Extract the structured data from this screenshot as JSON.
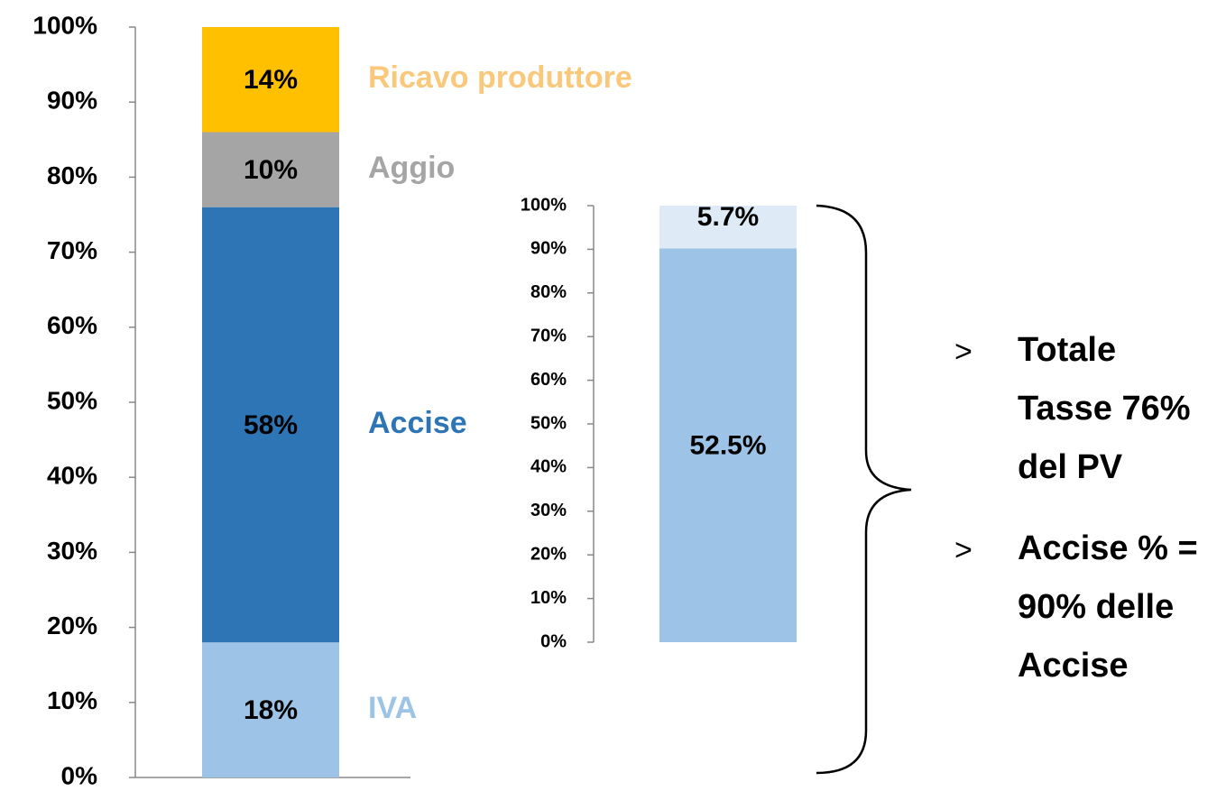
{
  "chart_data": [
    {
      "type": "stacked_bar",
      "stacking": "normal",
      "ylim": [
        0,
        100
      ],
      "yticks": [
        {
          "value": 0,
          "label": "0%"
        },
        {
          "value": 10,
          "label": "10%"
        },
        {
          "value": 20,
          "label": "20%"
        },
        {
          "value": 30,
          "label": "30%"
        },
        {
          "value": 40,
          "label": "40%"
        },
        {
          "value": 50,
          "label": "50%"
        },
        {
          "value": 60,
          "label": "60%"
        },
        {
          "value": 70,
          "label": "70%"
        },
        {
          "value": 80,
          "label": "80%"
        },
        {
          "value": 90,
          "label": "90%"
        },
        {
          "value": 100,
          "label": "100%"
        }
      ],
      "series": [
        {
          "name": "IVA",
          "color": "#9dc3e6",
          "values": [
            18
          ],
          "value_labels": [
            "18%"
          ]
        },
        {
          "name": "Accise",
          "color": "#2e75b6",
          "values": [
            58
          ],
          "value_labels": [
            "58%"
          ]
        },
        {
          "name": "Aggio",
          "color": "#a5a5a5",
          "values": [
            10
          ],
          "value_labels": [
            "10%"
          ]
        },
        {
          "name": "Ricavo produttore",
          "color": "#ffc000",
          "values": [
            14
          ],
          "value_labels": [
            "14%"
          ]
        }
      ]
    },
    {
      "type": "stacked_bar",
      "stacking": "percent",
      "ylim": [
        0,
        100
      ],
      "yticks": [
        {
          "value": 0,
          "label": "0%"
        },
        {
          "value": 10,
          "label": "10%"
        },
        {
          "value": 20,
          "label": "20%"
        },
        {
          "value": 30,
          "label": "30%"
        },
        {
          "value": 40,
          "label": "40%"
        },
        {
          "value": 50,
          "label": "50%"
        },
        {
          "value": 60,
          "label": "60%"
        },
        {
          "value": 70,
          "label": "70%"
        },
        {
          "value": 80,
          "label": "80%"
        },
        {
          "value": 90,
          "label": "90%"
        },
        {
          "value": 100,
          "label": "100%"
        }
      ],
      "series": [
        {
          "color": "#9dc3e6",
          "values": [
            52.5
          ],
          "value_labels": [
            "52.5%"
          ]
        },
        {
          "color": "#deebf7",
          "values": [
            5.7
          ],
          "value_labels": [
            "5.7%"
          ]
        }
      ]
    }
  ],
  "notes": [
    [
      "Totale",
      "Tasse 76%",
      "del PV"
    ],
    [
      "Accise % =",
      "90% delle",
      "Accise"
    ]
  ]
}
